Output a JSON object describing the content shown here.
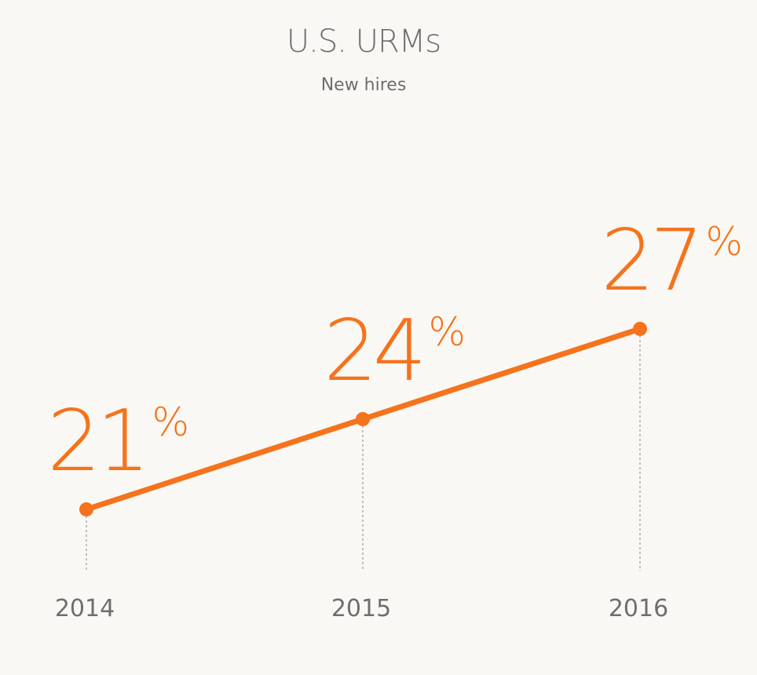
{
  "title": "U.S. URMs",
  "subtitle": "New hires",
  "colors": {
    "background": "#f9f8f4",
    "accent": "#f5731c",
    "text": "#6e6e6e",
    "guide": "#9a9a9a"
  },
  "chart_data": {
    "type": "line",
    "title": "U.S. URMs",
    "subtitle": "New hires",
    "categories": [
      "2014",
      "2015",
      "2016"
    ],
    "values": [
      21,
      24,
      27
    ],
    "unit": "%",
    "value_labels": [
      {
        "number": "21",
        "unit": "%"
      },
      {
        "number": "24",
        "unit": "%"
      },
      {
        "number": "27",
        "unit": "%"
      }
    ],
    "grid": false,
    "legend": "none"
  }
}
